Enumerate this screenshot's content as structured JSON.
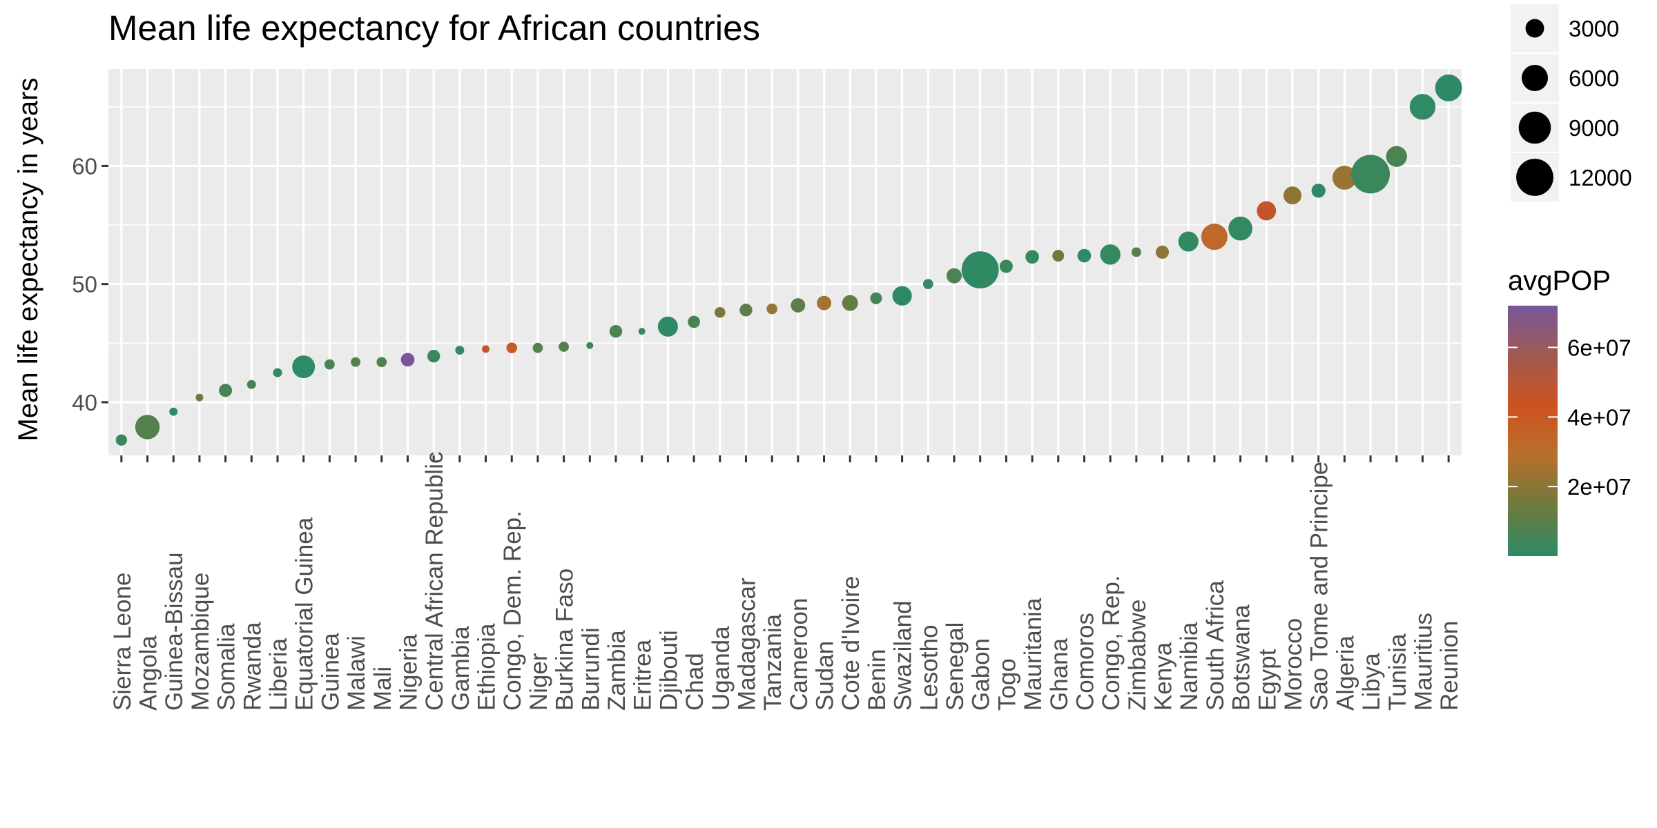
{
  "chart_data": {
    "type": "scatter",
    "title": "Mean life expectancy for African countries",
    "xlabel": "",
    "ylabel": "Mean life expectancy in years",
    "ylim": [
      35.5,
      68.2
    ],
    "y_ticks": [
      40,
      50,
      60
    ],
    "y_tick_labels": [
      "40",
      "50",
      "60"
    ],
    "grid": true,
    "categories": [
      "Sierra Leone",
      "Angola",
      "Guinea-Bissau",
      "Mozambique",
      "Somalia",
      "Rwanda",
      "Liberia",
      "Equatorial Guinea",
      "Guinea",
      "Malawi",
      "Mali",
      "Nigeria",
      "Central African Republic",
      "Gambia",
      "Ethiopia",
      "Congo, Dem. Rep.",
      "Niger",
      "Burkina Faso",
      "Burundi",
      "Zambia",
      "Eritrea",
      "Djibouti",
      "Chad",
      "Uganda",
      "Madagascar",
      "Tanzania",
      "Cameroon",
      "Sudan",
      "Cote d'Ivoire",
      "Benin",
      "Swaziland",
      "Lesotho",
      "Senegal",
      "Gabon",
      "Togo",
      "Mauritania",
      "Ghana",
      "Comoros",
      "Congo, Rep.",
      "Zimbabwe",
      "Kenya",
      "Namibia",
      "South Africa",
      "Botswana",
      "Egypt",
      "Morocco",
      "Sao Tome and Principe",
      "Algeria",
      "Libya",
      "Tunisia",
      "Mauritius",
      "Reunion"
    ],
    "values": [
      36.8,
      37.9,
      39.2,
      40.4,
      41.0,
      41.5,
      42.5,
      43.0,
      43.2,
      43.4,
      43.4,
      43.6,
      43.9,
      44.4,
      44.5,
      44.6,
      44.6,
      44.7,
      44.8,
      46.0,
      46.0,
      46.4,
      46.8,
      47.6,
      47.8,
      47.9,
      48.2,
      48.4,
      48.4,
      48.8,
      49.0,
      50.0,
      50.7,
      51.2,
      51.5,
      52.3,
      52.4,
      52.4,
      52.5,
      52.7,
      52.7,
      53.6,
      54.0,
      54.7,
      56.2,
      57.5,
      57.9,
      59.0,
      59.3,
      60.8,
      65.0,
      66.6
    ],
    "size_values": [
      1100,
      5200,
      600,
      500,
      1500,
      700,
      700,
      4500,
      900,
      800,
      900,
      1600,
      1400,
      700,
      500,
      1000,
      900,
      900,
      300,
      1400,
      400,
      3500,
      1300,
      1000,
      1400,
      1000,
      1800,
      1800,
      2200,
      1200,
      3300,
      900,
      2000,
      12000,
      1500,
      1600,
      1200,
      1600,
      3600,
      800,
      1500,
      3500,
      6000,
      5000,
      3200,
      2800,
      1700,
      5000,
      13000,
      3800,
      5800,
      6300
    ],
    "color_values": [
      3000000,
      9000000,
      1000000,
      15000000,
      6000000,
      6000000,
      2000000,
      400000,
      6000000,
      9000000,
      8000000,
      73000000,
      3000000,
      1000000,
      46000000,
      39000000,
      8000000,
      9000000,
      5000000,
      7000000,
      3000000,
      500000,
      6000000,
      17000000,
      11000000,
      22000000,
      11000000,
      25000000,
      12000000,
      5000000,
      700000,
      1500000,
      7000000,
      900000,
      3500000,
      2000000,
      14000000,
      400000,
      2000000,
      9000000,
      20000000,
      1300000,
      32000000,
      1200000,
      46000000,
      21000000,
      120000,
      23000000,
      3500000,
      7000000,
      1000000,
      500000
    ],
    "size_legend": {
      "title": "",
      "items": [
        3000,
        6000,
        9000,
        12000
      ],
      "labels": [
        "3000",
        "6000",
        "9000",
        "12000"
      ]
    },
    "color_legend": {
      "title": "avgPOP",
      "domain": [
        0,
        72000000
      ],
      "ticks": [
        20000000,
        40000000,
        60000000
      ],
      "labels": [
        "2e+07",
        "4e+07",
        "6e+07"
      ],
      "gradient_colors": [
        "#2b8b66",
        "#6e7a3d",
        "#b7702c",
        "#cd521f",
        "#a05a52",
        "#77569b"
      ]
    },
    "colors": {
      "panel_background": "#ebebeb",
      "grid_major": "#ffffff",
      "text": "#000000",
      "tick_text": "#4d4d4d"
    }
  }
}
